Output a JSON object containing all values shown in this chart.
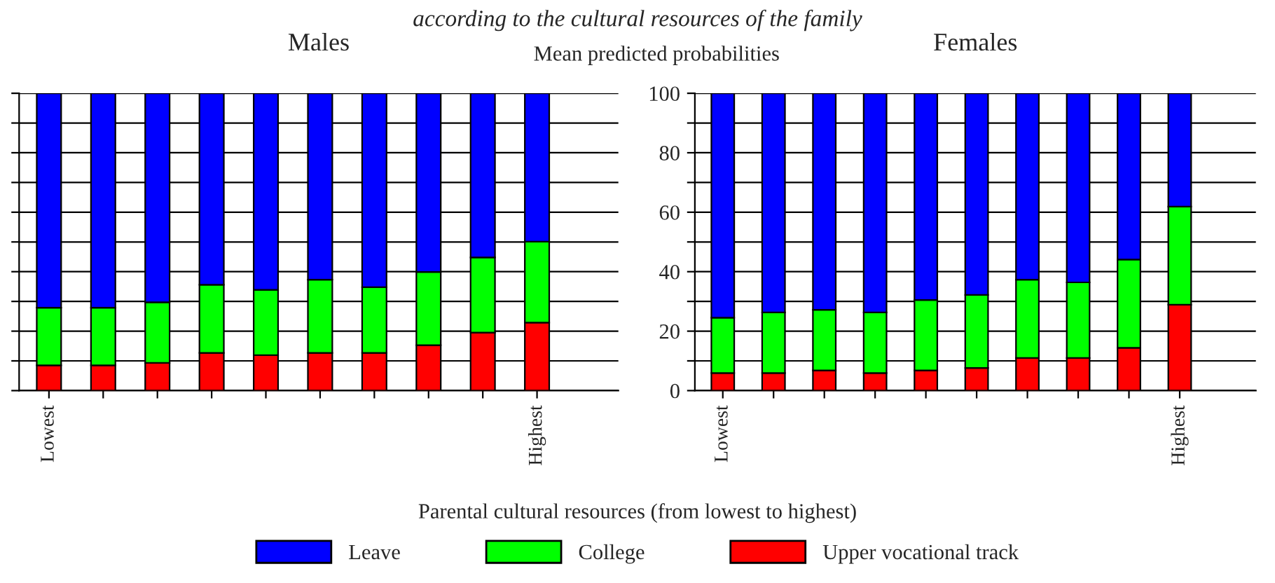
{
  "chart_data": [
    {
      "type": "bar",
      "title": "Males",
      "stacked": true,
      "grid": "y",
      "tick_labels": "x",
      "legend": "bottom",
      "annotations": [
        "according to the cultural resources of the family"
      ],
      "ylabel": "Mean predicted probabilities",
      "xlabel": "Parental cultural resources (from lowest to highest)",
      "categories": [
        "Lowest",
        null,
        null,
        null,
        null,
        null,
        null,
        null,
        null,
        "Highest"
      ],
      "ylim": [
        0,
        100
      ],
      "yticks": [
        0,
        10,
        20,
        30,
        40,
        50,
        60,
        70,
        80,
        90,
        100
      ],
      "series": [
        {
          "name": "Upper vocational track",
          "color": "#ff0000",
          "values": [
            8.5,
            8.5,
            9.3,
            12.7,
            11.9,
            12.7,
            12.7,
            15.3,
            19.5,
            22.9
          ]
        },
        {
          "name": "College",
          "color": "#00ff00",
          "values": [
            19.4,
            19.4,
            20.4,
            22.9,
            22.0,
            24.6,
            22.1,
            24.6,
            25.3,
            27.2
          ]
        },
        {
          "name": "Leave",
          "color": "#0000ff",
          "values": [
            72.1,
            72.1,
            70.3,
            64.4,
            66.1,
            62.7,
            65.2,
            60.1,
            55.2,
            49.9
          ]
        }
      ]
    },
    {
      "type": "bar",
      "title": "Females",
      "stacked": true,
      "grid": "y",
      "categories": [
        "Lowest",
        null,
        null,
        null,
        null,
        null,
        null,
        null,
        null,
        "Highest"
      ],
      "ylim": [
        0,
        100
      ],
      "yticks": [
        0,
        {
          "value": 10,
          "label": null
        },
        20,
        {
          "value": 30,
          "label": null
        },
        40,
        {
          "value": 50,
          "label": null
        },
        60,
        {
          "value": 70,
          "label": null
        },
        80,
        {
          "value": 90,
          "label": null
        },
        100
      ],
      "series": [
        {
          "color": "#ff0000",
          "values": [
            5.9,
            5.9,
            6.8,
            5.9,
            6.8,
            7.6,
            11.0,
            11.0,
            14.4,
            28.9
          ]
        },
        {
          "color": "#00ff00",
          "values": [
            18.6,
            20.4,
            20.4,
            20.4,
            23.7,
            24.6,
            26.3,
            25.4,
            29.7,
            33.0
          ]
        },
        {
          "color": "#0000ff",
          "values": [
            75.5,
            73.7,
            72.8,
            73.7,
            69.5,
            67.8,
            62.7,
            63.6,
            55.9,
            38.1
          ]
        }
      ]
    }
  ]
}
